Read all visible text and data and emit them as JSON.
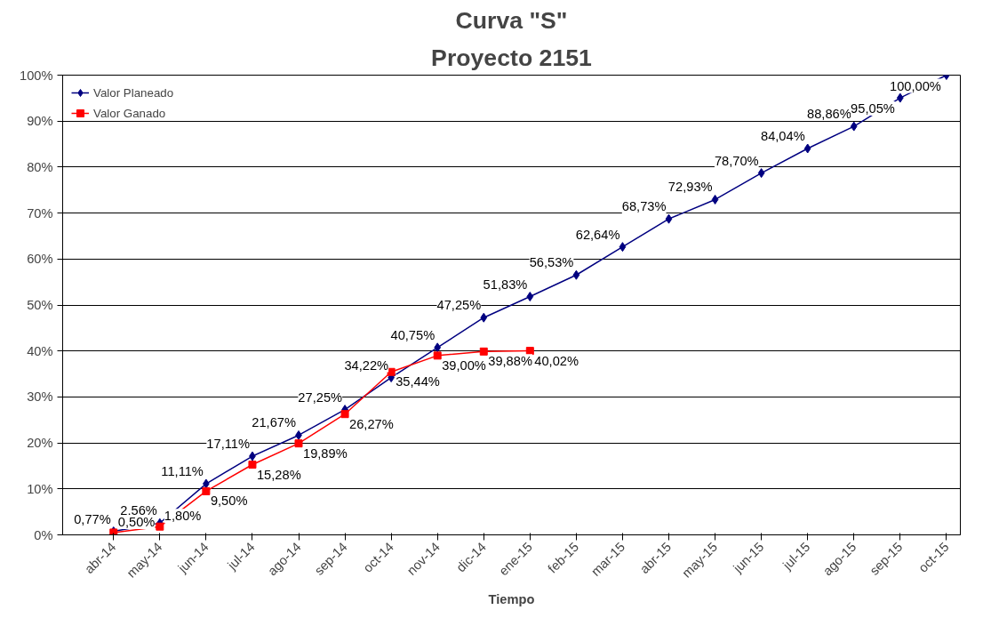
{
  "chart_data": {
    "type": "line",
    "title": "Curva \"S\"",
    "subtitle": "Proyecto 2151",
    "xlabel": "Tiempo",
    "categories": [
      "abr-14",
      "may-14",
      "jun-14",
      "jul-14",
      "ago-14",
      "sep-14",
      "oct-14",
      "nov-14",
      "dic-14",
      "ene-15",
      "feb-15",
      "mar-15",
      "abr-15",
      "may-15",
      "jun-15",
      "jul-15",
      "ago-15",
      "sep-15",
      "oct-15"
    ],
    "series": [
      {
        "name": "Valor Planeado",
        "color": "#000080",
        "marker": "diamond",
        "values": [
          0.77,
          2.56,
          11.11,
          17.11,
          21.67,
          27.25,
          34.22,
          40.75,
          47.25,
          51.83,
          56.53,
          62.64,
          68.73,
          72.93,
          78.7,
          84.04,
          88.86,
          95.05,
          100.0
        ],
        "value_labels": [
          "0,77%",
          "2,56%",
          "11,11%",
          "17,11%",
          "21,67%",
          "27,25%",
          "34,22%",
          "40,75%",
          "47,25%",
          "51,83%",
          "56,53%",
          "62,64%",
          "68,73%",
          "72,93%",
          "78,70%",
          "84,04%",
          "88,86%",
          "95,05%",
          "100,00%"
        ]
      },
      {
        "name": "Valor Ganado",
        "color": "#ff0000",
        "marker": "square",
        "values": [
          0.5,
          1.8,
          9.5,
          15.28,
          19.89,
          26.27,
          35.44,
          39.0,
          39.88,
          40.02,
          null,
          null,
          null,
          null,
          null,
          null,
          null,
          null,
          null
        ],
        "value_labels": [
          "0,50%",
          "1,80%",
          "9,50%",
          "15,28%",
          "19,89%",
          "26,27%",
          "35,44%",
          "39,00%",
          "39,88%",
          "40,02%",
          null,
          null,
          null,
          null,
          null,
          null,
          null,
          null,
          null
        ]
      }
    ],
    "ylim": [
      0,
      100
    ],
    "yticks": [
      {
        "value": 0,
        "label": "0%"
      },
      {
        "value": 10,
        "label": "10%"
      },
      {
        "value": 20,
        "label": "20%"
      },
      {
        "value": 30,
        "label": "30%"
      },
      {
        "value": 40,
        "label": "40%"
      },
      {
        "value": 50,
        "label": "50%"
      },
      {
        "value": 60,
        "label": "60%"
      },
      {
        "value": 70,
        "label": "70%"
      },
      {
        "value": 80,
        "label": "80%"
      },
      {
        "value": 90,
        "label": "90%"
      },
      {
        "value": 100,
        "label": "100%"
      }
    ],
    "grid": "y",
    "legend": "top left",
    "line_style": "solid"
  }
}
